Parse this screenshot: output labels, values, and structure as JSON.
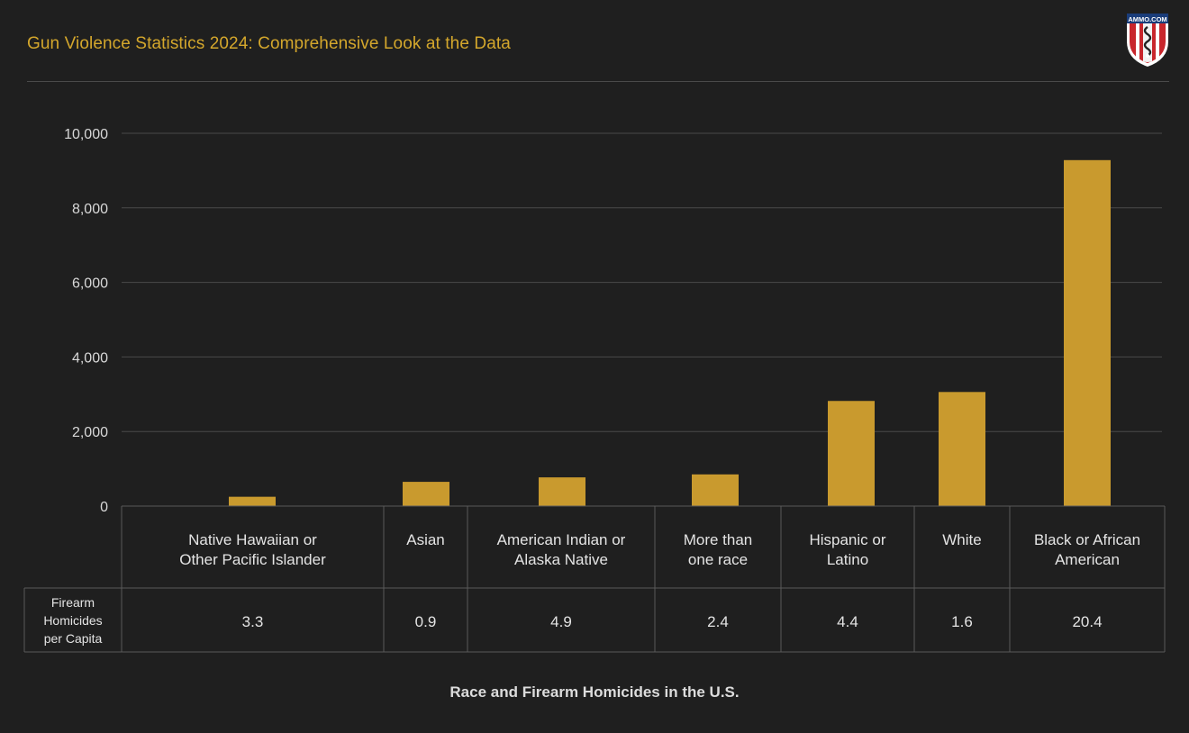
{
  "header": {
    "title": "Gun Violence Statistics 2024: Comprehensive Look at the Data",
    "logo_text": "AMMO.COM",
    "logo_icon": "shield-snake-logo-icon"
  },
  "colors": {
    "background": "#1f1f1f",
    "bar": "#c99a2e",
    "title": "#d4a72c",
    "grid": "#4a4a4a",
    "table_border": "#5a5a5a"
  },
  "chart_data": {
    "type": "bar",
    "caption": "Race and Firearm Homicides in the U.S.",
    "categories": [
      [
        "Native Hawaiian or",
        "Other Pacific Islander"
      ],
      [
        "Asian"
      ],
      [
        "American Indian or",
        "Alaska Native"
      ],
      [
        "More than",
        "one race"
      ],
      [
        "Hispanic or",
        "Latino"
      ],
      [
        "White"
      ],
      [
        "Black or African",
        "American"
      ]
    ],
    "values": [
      250,
      650,
      770,
      850,
      2820,
      3060,
      9280
    ],
    "ylim": [
      0,
      10000
    ],
    "yticks": [
      0,
      2000,
      4000,
      6000,
      8000,
      10000
    ],
    "ytick_labels": [
      "0",
      "2,000",
      "4,000",
      "6,000",
      "8,000",
      "10,000"
    ],
    "grid": true,
    "legend": "none",
    "table": {
      "row_header": [
        "Firearm",
        "Homicides",
        "per Capita"
      ],
      "values": [
        "3.3",
        "0.9",
        "4.9",
        "2.4",
        "4.4",
        "1.6",
        "20.4"
      ]
    }
  }
}
